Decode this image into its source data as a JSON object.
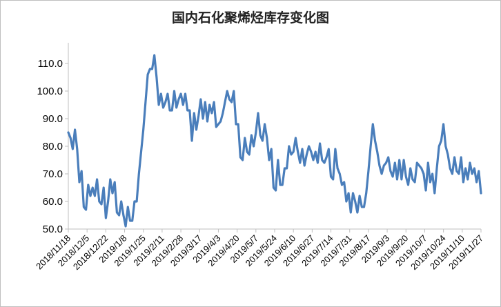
{
  "chart_data": {
    "type": "line",
    "title": "国内石化聚烯烃库存变化图",
    "xlabel": "",
    "ylabel": "",
    "ylim": [
      50,
      115
    ],
    "grid": false,
    "legend": "none",
    "y_ticks": [
      "50.0",
      "60.0",
      "70.0",
      "80.0",
      "90.0",
      "100.0",
      "110.0"
    ],
    "x_tick_labels": [
      "2018/11/18",
      "2018/12/5",
      "2018/12/22",
      "2019/1/8",
      "2019/1/25",
      "2019/2/11",
      "2019/2/28",
      "2019/3/17",
      "2019/4/3",
      "2019/4/20",
      "2019/5/7",
      "2019/5/24",
      "2019/6/10",
      "2019/6/27",
      "2019/7/14",
      "2019/7/31",
      "2019/8/17",
      "2019/9/3",
      "2019/9/20",
      "2019/10/7",
      "2019/10/24",
      "2019/11/10",
      "2019/11/27"
    ],
    "x_range": [
      "2018/11/18",
      "2019/11/27"
    ],
    "line_color": "#4a7ebb",
    "series": [
      {
        "values": [
          [
            "2018/11/18",
            85
          ],
          [
            "2018/11/20",
            83
          ],
          [
            "2018/11/22",
            79
          ],
          [
            "2018/11/24",
            86
          ],
          [
            "2018/11/26",
            79
          ],
          [
            "2018/11/28",
            67
          ],
          [
            "2018/11/30",
            71
          ],
          [
            "2018/12/2",
            58
          ],
          [
            "2018/12/4",
            57
          ],
          [
            "2018/12/6",
            66
          ],
          [
            "2018/12/8",
            62
          ],
          [
            "2018/12/10",
            65
          ],
          [
            "2018/12/12",
            62
          ],
          [
            "2018/12/14",
            68
          ],
          [
            "2018/12/16",
            60
          ],
          [
            "2018/12/18",
            59
          ],
          [
            "2018/12/20",
            65
          ],
          [
            "2018/12/22",
            54
          ],
          [
            "2018/12/24",
            60
          ],
          [
            "2018/12/26",
            68
          ],
          [
            "2018/12/28",
            63
          ],
          [
            "2018/12/30",
            67
          ],
          [
            "2019/1/1",
            56
          ],
          [
            "2019/1/3",
            55
          ],
          [
            "2019/1/5",
            60
          ],
          [
            "2019/1/7",
            55
          ],
          [
            "2019/1/9",
            51
          ],
          [
            "2019/1/11",
            58
          ],
          [
            "2019/1/13",
            53
          ],
          [
            "2019/1/15",
            53
          ],
          [
            "2019/1/17",
            60
          ],
          [
            "2019/1/19",
            60
          ],
          [
            "2019/1/21",
            70
          ],
          [
            "2019/1/23",
            78
          ],
          [
            "2019/1/25",
            86
          ],
          [
            "2019/1/27",
            96
          ],
          [
            "2019/1/29",
            106
          ],
          [
            "2019/1/31",
            108
          ],
          [
            "2019/2/2",
            108
          ],
          [
            "2019/2/4",
            113
          ],
          [
            "2019/2/6",
            105
          ],
          [
            "2019/2/8",
            95
          ],
          [
            "2019/2/10",
            99
          ],
          [
            "2019/2/12",
            94
          ],
          [
            "2019/2/14",
            96
          ],
          [
            "2019/2/16",
            99
          ],
          [
            "2019/2/18",
            93
          ],
          [
            "2019/2/20",
            93
          ],
          [
            "2019/2/22",
            100
          ],
          [
            "2019/2/24",
            94
          ],
          [
            "2019/2/26",
            97
          ],
          [
            "2019/2/28",
            99
          ],
          [
            "2019/3/2",
            95
          ],
          [
            "2019/3/4",
            99
          ],
          [
            "2019/3/6",
            93
          ],
          [
            "2019/3/8",
            93
          ],
          [
            "2019/3/10",
            82
          ],
          [
            "2019/3/12",
            92
          ],
          [
            "2019/3/14",
            86
          ],
          [
            "2019/3/16",
            91
          ],
          [
            "2019/3/18",
            97
          ],
          [
            "2019/3/20",
            90
          ],
          [
            "2019/3/22",
            96
          ],
          [
            "2019/3/24",
            89
          ],
          [
            "2019/3/26",
            95
          ],
          [
            "2019/3/28",
            92
          ],
          [
            "2019/3/30",
            96
          ],
          [
            "2019/4/1",
            87
          ],
          [
            "2019/4/3",
            88
          ],
          [
            "2019/4/5",
            89
          ],
          [
            "2019/4/7",
            92
          ],
          [
            "2019/4/9",
            96
          ],
          [
            "2019/4/11",
            100
          ],
          [
            "2019/4/13",
            97
          ],
          [
            "2019/4/15",
            96
          ],
          [
            "2019/4/17",
            100
          ],
          [
            "2019/4/19",
            88
          ],
          [
            "2019/4/21",
            88
          ],
          [
            "2019/4/23",
            76
          ],
          [
            "2019/4/25",
            75
          ],
          [
            "2019/4/27",
            83
          ],
          [
            "2019/4/29",
            78
          ],
          [
            "2019/5/1",
            77
          ],
          [
            "2019/5/3",
            84
          ],
          [
            "2019/5/5",
            80
          ],
          [
            "2019/5/7",
            85
          ],
          [
            "2019/5/9",
            92
          ],
          [
            "2019/5/11",
            84
          ],
          [
            "2019/5/13",
            82
          ],
          [
            "2019/5/15",
            88
          ],
          [
            "2019/5/17",
            83
          ],
          [
            "2019/5/19",
            75
          ],
          [
            "2019/5/21",
            79
          ],
          [
            "2019/5/23",
            65
          ],
          [
            "2019/5/25",
            64
          ],
          [
            "2019/5/27",
            75
          ],
          [
            "2019/5/29",
            66
          ],
          [
            "2019/5/31",
            66
          ],
          [
            "2019/6/2",
            72
          ],
          [
            "2019/6/4",
            72
          ],
          [
            "2019/6/6",
            80
          ],
          [
            "2019/6/8",
            77
          ],
          [
            "2019/6/10",
            78
          ],
          [
            "2019/6/12",
            83
          ],
          [
            "2019/6/14",
            78
          ],
          [
            "2019/6/16",
            74
          ],
          [
            "2019/6/18",
            79
          ],
          [
            "2019/6/20",
            73
          ],
          [
            "2019/6/22",
            77
          ],
          [
            "2019/6/24",
            80
          ],
          [
            "2019/6/26",
            78
          ],
          [
            "2019/6/28",
            75
          ],
          [
            "2019/6/30",
            78
          ],
          [
            "2019/7/2",
            74
          ],
          [
            "2019/7/4",
            81
          ],
          [
            "2019/7/6",
            75
          ],
          [
            "2019/7/8",
            74
          ],
          [
            "2019/7/10",
            76
          ],
          [
            "2019/7/12",
            79
          ],
          [
            "2019/7/14",
            69
          ],
          [
            "2019/7/16",
            68
          ],
          [
            "2019/7/18",
            79
          ],
          [
            "2019/7/20",
            72
          ],
          [
            "2019/7/22",
            70
          ],
          [
            "2019/7/24",
            66
          ],
          [
            "2019/7/26",
            67
          ],
          [
            "2019/7/28",
            60
          ],
          [
            "2019/7/30",
            63
          ],
          [
            "2019/8/1",
            56
          ],
          [
            "2019/8/3",
            63
          ],
          [
            "2019/8/5",
            60
          ],
          [
            "2019/8/7",
            56
          ],
          [
            "2019/8/9",
            62
          ],
          [
            "2019/8/11",
            58
          ],
          [
            "2019/8/13",
            58
          ],
          [
            "2019/8/15",
            63
          ],
          [
            "2019/8/17",
            71
          ],
          [
            "2019/8/19",
            80
          ],
          [
            "2019/8/21",
            88
          ],
          [
            "2019/8/23",
            82
          ],
          [
            "2019/8/25",
            78
          ],
          [
            "2019/8/27",
            73
          ],
          [
            "2019/8/29",
            70
          ],
          [
            "2019/8/31",
            73
          ],
          [
            "2019/9/2",
            74
          ],
          [
            "2019/9/4",
            76
          ],
          [
            "2019/9/6",
            71
          ],
          [
            "2019/9/8",
            69
          ],
          [
            "2019/9/10",
            74
          ],
          [
            "2019/9/12",
            68
          ],
          [
            "2019/9/14",
            75
          ],
          [
            "2019/9/16",
            68
          ],
          [
            "2019/9/18",
            75
          ],
          [
            "2019/9/20",
            69
          ],
          [
            "2019/9/22",
            66
          ],
          [
            "2019/9/24",
            72
          ],
          [
            "2019/9/26",
            68
          ],
          [
            "2019/9/28",
            67
          ],
          [
            "2019/9/30",
            74
          ],
          [
            "2019/10/2",
            73
          ],
          [
            "2019/10/4",
            72
          ],
          [
            "2019/10/6",
            70
          ],
          [
            "2019/10/8",
            64
          ],
          [
            "2019/10/10",
            74
          ],
          [
            "2019/10/12",
            67
          ],
          [
            "2019/10/14",
            70
          ],
          [
            "2019/10/16",
            63
          ],
          [
            "2019/10/18",
            72
          ],
          [
            "2019/10/20",
            80
          ],
          [
            "2019/10/22",
            82
          ],
          [
            "2019/10/24",
            88
          ],
          [
            "2019/10/26",
            80
          ],
          [
            "2019/10/28",
            77
          ],
          [
            "2019/10/30",
            72
          ],
          [
            "2019/11/1",
            70
          ],
          [
            "2019/11/3",
            76
          ],
          [
            "2019/11/5",
            71
          ],
          [
            "2019/11/7",
            70
          ],
          [
            "2019/11/9",
            76
          ],
          [
            "2019/11/11",
            67
          ],
          [
            "2019/11/13",
            72
          ],
          [
            "2019/11/15",
            68
          ],
          [
            "2019/11/17",
            74
          ],
          [
            "2019/11/19",
            70
          ],
          [
            "2019/11/21",
            72
          ],
          [
            "2019/11/23",
            67
          ],
          [
            "2019/11/25",
            71
          ],
          [
            "2019/11/27",
            63
          ]
        ]
      }
    ]
  }
}
